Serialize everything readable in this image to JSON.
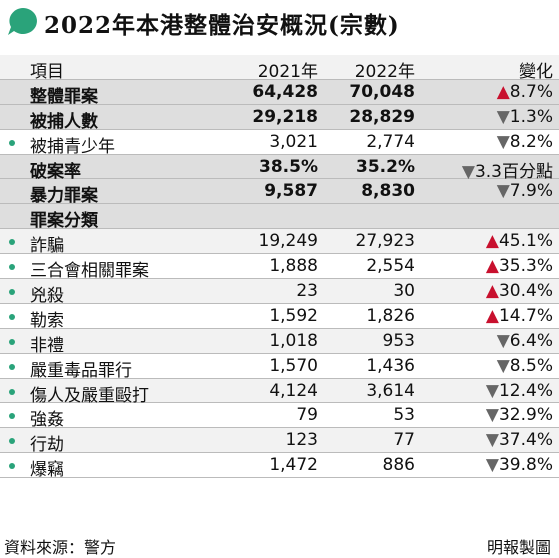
{
  "header": {
    "title": "2022年本港整體治安概況(宗數)"
  },
  "table": {
    "columns": [
      "項目",
      "2021年",
      "2022年",
      "變化"
    ],
    "rows": [
      {
        "label": "整體罪案",
        "y2021": "64,428",
        "y2022": "70,048",
        "change": "8.7%",
        "direction": "up",
        "bold": true,
        "bullet": false
      },
      {
        "label": "被捕人數",
        "y2021": "29,218",
        "y2022": "28,829",
        "change": "1.3%",
        "direction": "down",
        "bold": true,
        "bullet": false
      },
      {
        "label": "被捕青少年",
        "y2021": "3,021",
        "y2022": "2,774",
        "change": "8.2%",
        "direction": "down",
        "bold": false,
        "bullet": true
      },
      {
        "label": "破案率",
        "y2021": "38.5%",
        "y2022": "35.2%",
        "change": "3.3百分點",
        "direction": "down",
        "bold": true,
        "bullet": false
      },
      {
        "label": "暴力罪案",
        "y2021": "9,587",
        "y2022": "8,830",
        "change": "7.9%",
        "direction": "down",
        "bold": true,
        "bullet": false
      },
      {
        "label": "罪案分類",
        "bold": true,
        "bullet": false
      },
      {
        "label": "詐騙",
        "y2021": "19,249",
        "y2022": "27,923",
        "change": "45.1%",
        "direction": "up",
        "bold": false,
        "bullet": true
      },
      {
        "label": "三合會相關罪案",
        "y2021": "1,888",
        "y2022": "2,554",
        "change": "35.3%",
        "direction": "up",
        "bold": false,
        "bullet": true
      },
      {
        "label": "兇殺",
        "y2021": "23",
        "y2022": "30",
        "change": "30.4%",
        "direction": "up",
        "bold": false,
        "bullet": true
      },
      {
        "label": "勒索",
        "y2021": "1,592",
        "y2022": "1,826",
        "change": "14.7%",
        "direction": "up",
        "bold": false,
        "bullet": true
      },
      {
        "label": "非禮",
        "y2021": "1,018",
        "y2022": "953",
        "change": "6.4%",
        "direction": "down",
        "bold": false,
        "bullet": true
      },
      {
        "label": "嚴重毒品罪行",
        "y2021": "1,570",
        "y2022": "1,436",
        "change": "8.5%",
        "direction": "down",
        "bold": false,
        "bullet": true
      },
      {
        "label": "傷人及嚴重毆打",
        "y2021": "4,124",
        "y2022": "3,614",
        "change": "12.4%",
        "direction": "down",
        "bold": false,
        "bullet": true
      },
      {
        "label": "強姦",
        "y2021": "79",
        "y2022": "53",
        "change": "32.9%",
        "direction": "down",
        "bold": false,
        "bullet": true
      },
      {
        "label": "行劫",
        "y2021": "123",
        "y2022": "77",
        "change": "37.4%",
        "direction": "down",
        "bold": false,
        "bullet": true
      },
      {
        "label": "爆竊",
        "y2021": "1,472",
        "y2022": "886",
        "change": "39.8%",
        "direction": "down",
        "bold": false,
        "bullet": true
      }
    ]
  },
  "footer": {
    "source": "資料來源：警方",
    "credit": "明報製圖"
  }
}
